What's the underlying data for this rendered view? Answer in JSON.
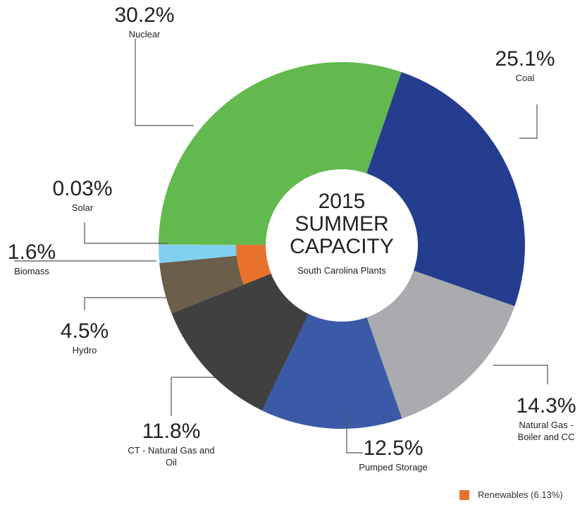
{
  "chart_data": {
    "type": "donut",
    "title": "2015 SUMMER CAPACITY",
    "subtitle": "South Carolina Plants",
    "categories": [
      "Coal",
      "Natural Gas - Boiler and CC",
      "Pumped Storage",
      "CT - Natural Gas and Oil",
      "Hydro",
      "Biomass",
      "Solar",
      "Nuclear"
    ],
    "values": [
      25.1,
      14.3,
      12.5,
      11.8,
      4.5,
      1.6,
      0.03,
      30.2
    ],
    "value_labels": [
      "25.1%",
      "14.3%",
      "12.5%",
      "11.8%",
      "4.5%",
      "1.6%",
      "0.03%",
      "30.2%"
    ],
    "colors": [
      "#253d8f",
      "#a9abae",
      "#3a5aa8",
      "#404040",
      "#6b5e4a",
      "#80d0f2",
      "#a4d07a",
      "#62b94e"
    ],
    "renewables": {
      "name": "Renewables (6.13%)",
      "value": 6.13,
      "color": "#e8722c"
    }
  }
}
